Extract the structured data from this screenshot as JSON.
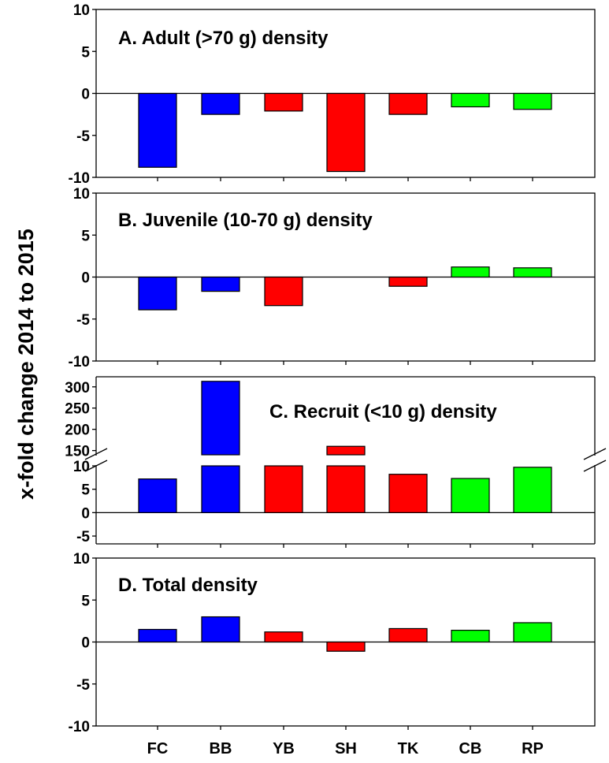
{
  "ylabel": "x-fold change 2014 to 2015",
  "colors": {
    "blue": "#0000ff",
    "red": "#ff0000",
    "green": "#00ff00"
  },
  "chart_data": {
    "type": "bar",
    "categories": [
      "FC",
      "BB",
      "YB",
      "SH",
      "TK",
      "CB",
      "RP"
    ],
    "bar_colors": [
      "#0000ff",
      "#0000ff",
      "#ff0000",
      "#ff0000",
      "#ff0000",
      "#00ff00",
      "#00ff00"
    ],
    "ylabel": "x-fold change 2014 to 2015",
    "panels": [
      {
        "title": "A. Adult (>70 g) density",
        "ylim": [
          -10,
          10
        ],
        "yticks": [
          10,
          5,
          0,
          -5,
          -10
        ],
        "values": [
          -8.8,
          -2.5,
          -2.1,
          -9.3,
          -2.5,
          -1.6,
          -1.9
        ]
      },
      {
        "title": "B. Juvenile (10-70 g) density",
        "ylim": [
          -10,
          10
        ],
        "yticks": [
          10,
          5,
          0,
          -5,
          -10
        ],
        "values": [
          -3.9,
          -1.7,
          -3.4,
          0,
          -1.1,
          1.2,
          1.1
        ]
      },
      {
        "title": "C. Recruit (<10 g) density",
        "broken_axis": true,
        "lower_ylim": [
          -6,
          10
        ],
        "lower_yticks": [
          10,
          5,
          0,
          -5
        ],
        "upper_ylim": [
          140,
          320
        ],
        "upper_yticks": [
          300,
          250,
          200,
          150
        ],
        "values": [
          7.2,
          313,
          10,
          160,
          8.2,
          7.3,
          9.7
        ]
      },
      {
        "title": "D. Total density",
        "ylim": [
          -10,
          10
        ],
        "yticks": [
          10,
          5,
          0,
          -5,
          -10
        ],
        "values": [
          1.5,
          3.0,
          1.2,
          -1.1,
          1.6,
          1.4,
          2.3
        ]
      }
    ]
  }
}
